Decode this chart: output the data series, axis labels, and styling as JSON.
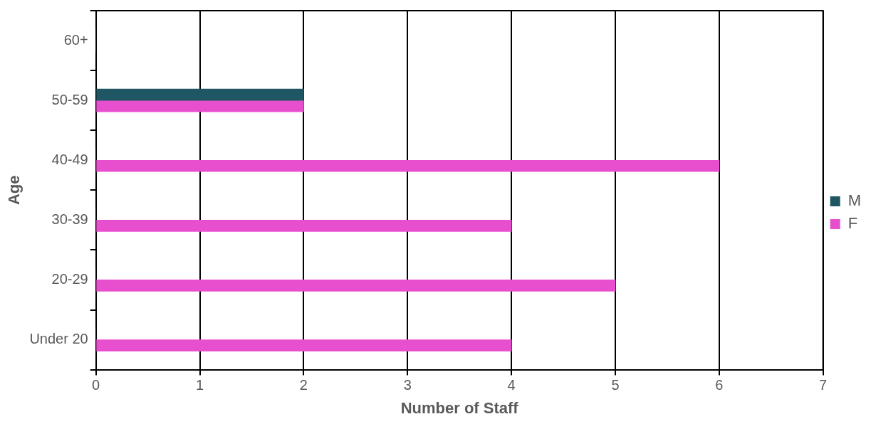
{
  "chart_data": {
    "type": "bar",
    "orientation": "horizontal",
    "xlabel": "Number of Staff",
    "ylabel": "Age",
    "categories": [
      "60+",
      "50-59",
      "40-49",
      "30-39",
      "20-29",
      "Under 20"
    ],
    "series": [
      {
        "name": "M",
        "color": "#1f5663",
        "values": [
          0,
          2,
          0,
          0,
          0,
          0
        ]
      },
      {
        "name": "F",
        "color": "#e84fcf",
        "values": [
          0,
          2,
          6,
          4,
          5,
          4
        ]
      }
    ],
    "xlim": [
      0,
      7
    ],
    "xticks": [
      0,
      1,
      2,
      3,
      4,
      5,
      6,
      7
    ],
    "grid": "x",
    "legend": "right"
  }
}
